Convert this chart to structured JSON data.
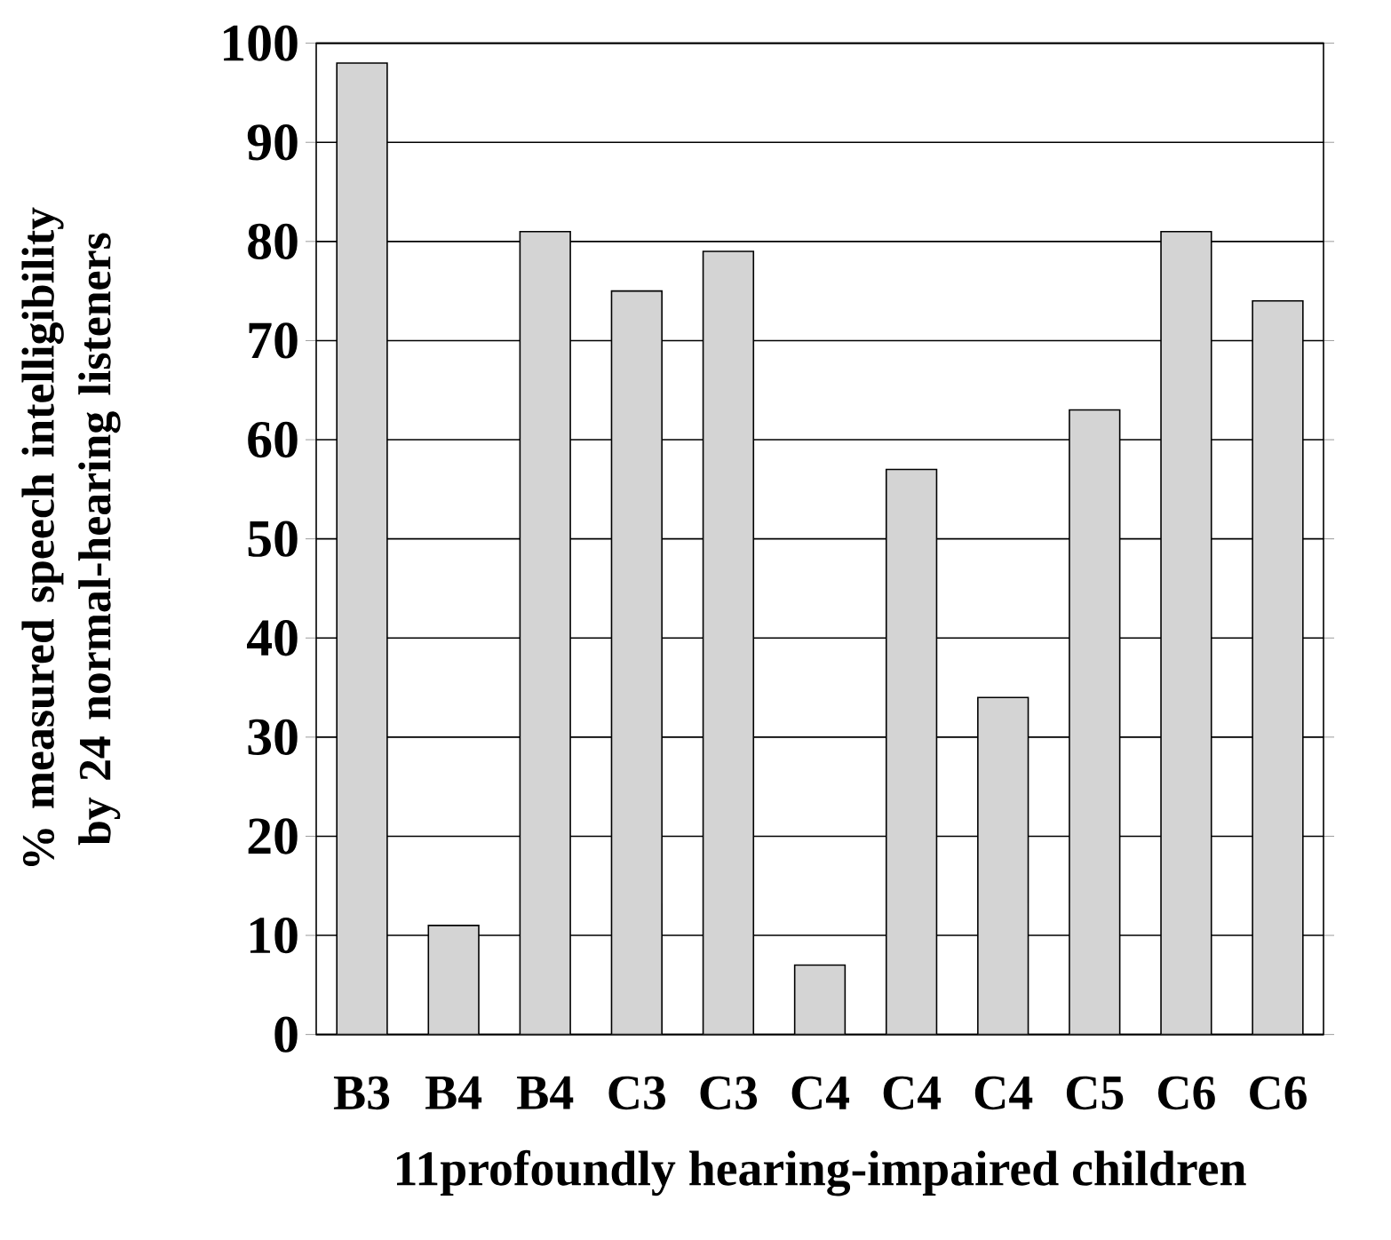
{
  "chart_data": {
    "type": "bar",
    "xlabel": "11profoundly hearing-impaired children",
    "ylabel": "% measured speech intelligibility by 24 normal-hearing listeners",
    "categories": [
      "B3",
      "B4",
      "B4",
      "C3",
      "C3",
      "C4",
      "C4",
      "C4",
      "C5",
      "C6",
      "C6"
    ],
    "values": [
      98,
      11,
      81,
      75,
      79,
      7,
      57,
      34,
      63,
      81,
      74
    ],
    "color": "#d4d4d4",
    "ylim": [
      0,
      100
    ],
    "yticks": [
      0,
      10,
      20,
      30,
      40,
      50,
      60,
      70,
      80,
      90,
      100
    ],
    "grid": "y"
  }
}
